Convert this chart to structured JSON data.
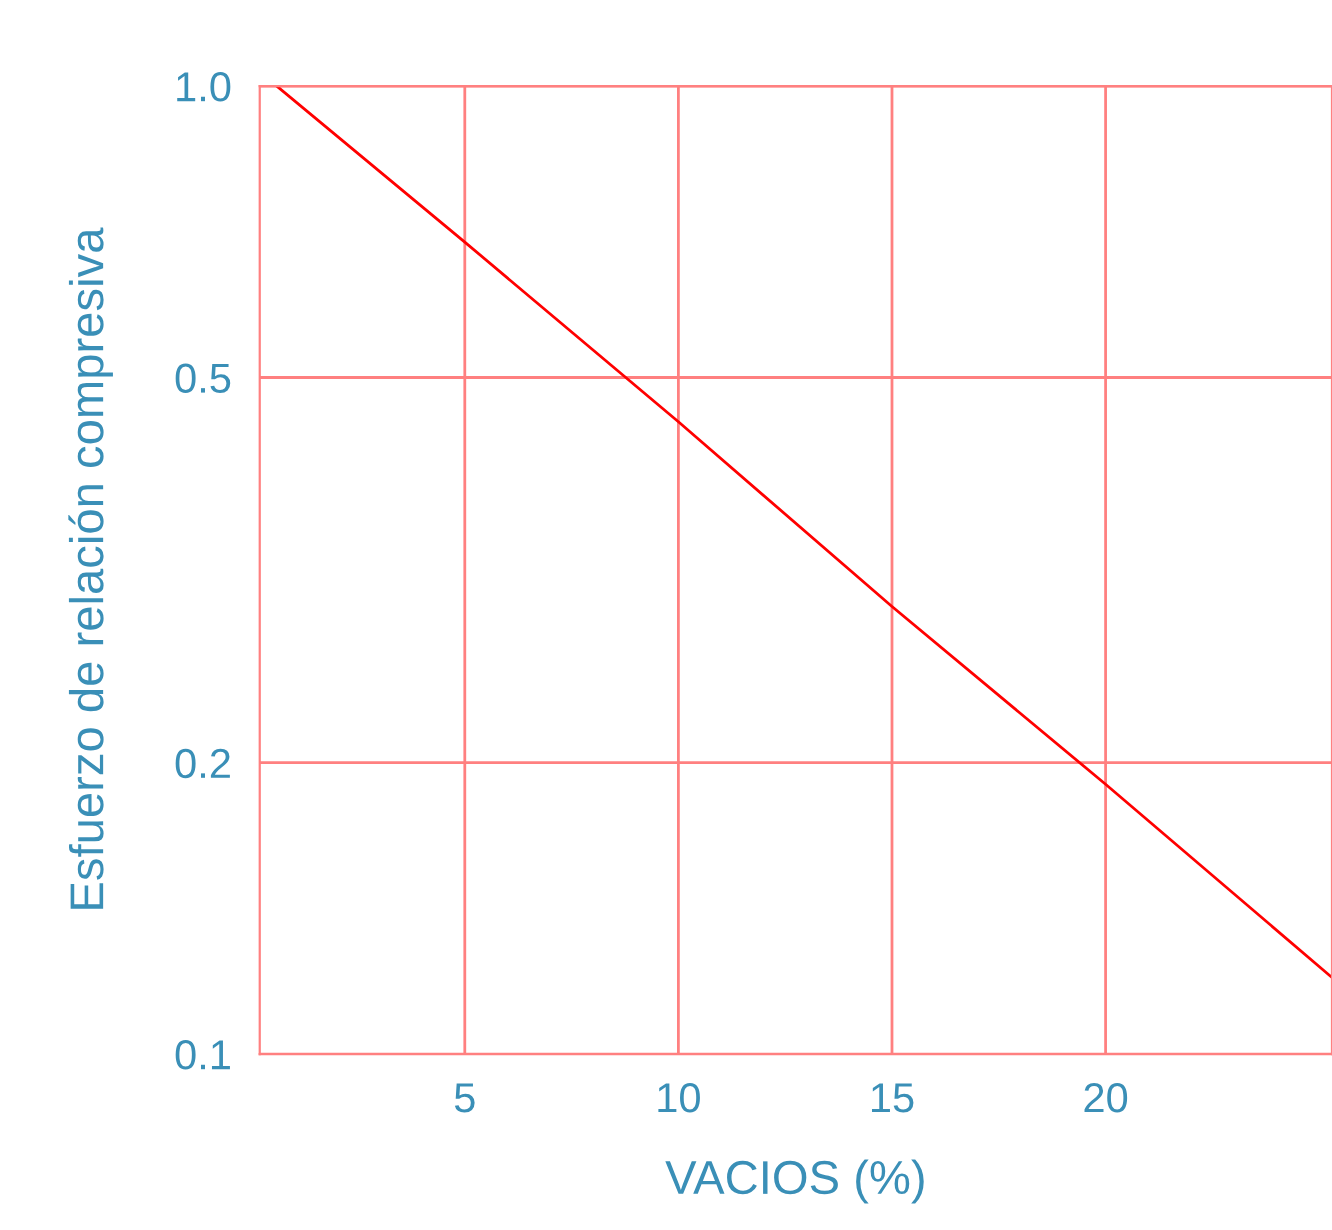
{
  "chart_data": {
    "type": "line",
    "xlabel": "VACIOS (%)",
    "ylabel": "Esfuerzo de relación compresiva",
    "x": [
      0.6,
      5,
      10,
      15,
      20,
      25.3
    ],
    "series": [
      {
        "color": "#ff0000",
        "values": [
          1.0,
          0.69,
          0.45,
          0.29,
          0.19,
          0.12
        ]
      }
    ],
    "log": "y",
    "xlim": [
      0.2,
      25.3
    ],
    "ylim": [
      0.1,
      1.0
    ],
    "xticks": [
      5,
      10,
      15,
      20
    ],
    "yticks": [
      {
        "value": 1.0,
        "label": "1.0"
      },
      {
        "value": 0.5,
        "label": "0.5"
      },
      {
        "value": 0.2,
        "label": "0.2"
      },
      {
        "value": 0.1,
        "label": "0.1"
      }
    ],
    "grid": true,
    "marker": "none",
    "line_style": "solid"
  }
}
